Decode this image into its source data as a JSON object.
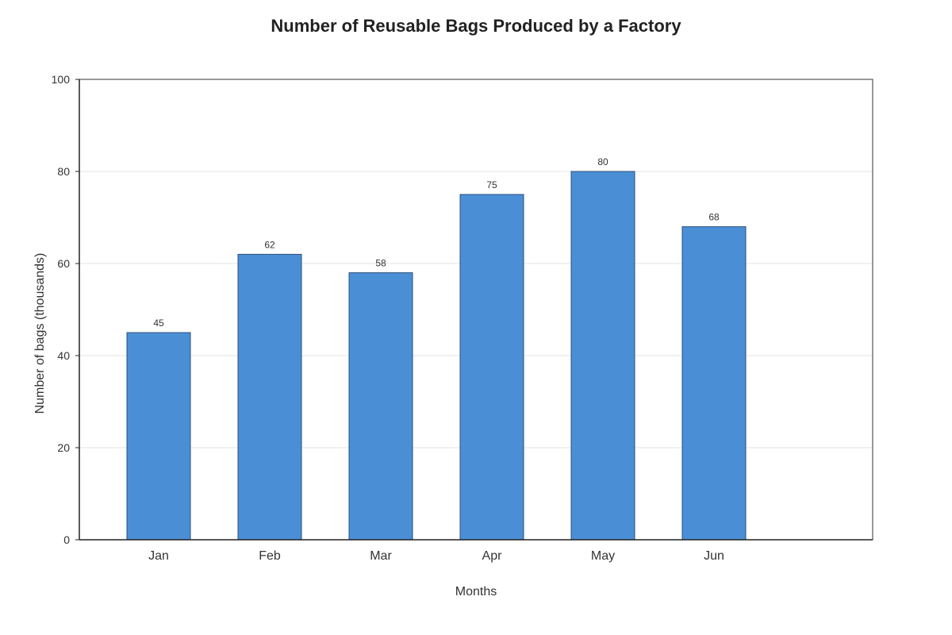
{
  "chart_data": {
    "type": "bar",
    "title": "Number of Reusable Bags Produced by a Factory",
    "xlabel": "Months",
    "ylabel": "Number of bags (thousands)",
    "categories": [
      "Jan",
      "Feb",
      "Mar",
      "Apr",
      "May",
      "Jun"
    ],
    "values": [
      45,
      62,
      58,
      75,
      80,
      68
    ],
    "data_labels": [
      "45",
      "62",
      "58",
      "75",
      "80",
      "68"
    ],
    "ylim": [
      0,
      100
    ],
    "yticks": [
      0,
      20,
      40,
      60,
      80,
      100
    ],
    "grid": true,
    "legend": "none",
    "colors": {
      "bar_fill": "#4a8fd6",
      "bar_stroke": "#2c4f7a"
    }
  }
}
